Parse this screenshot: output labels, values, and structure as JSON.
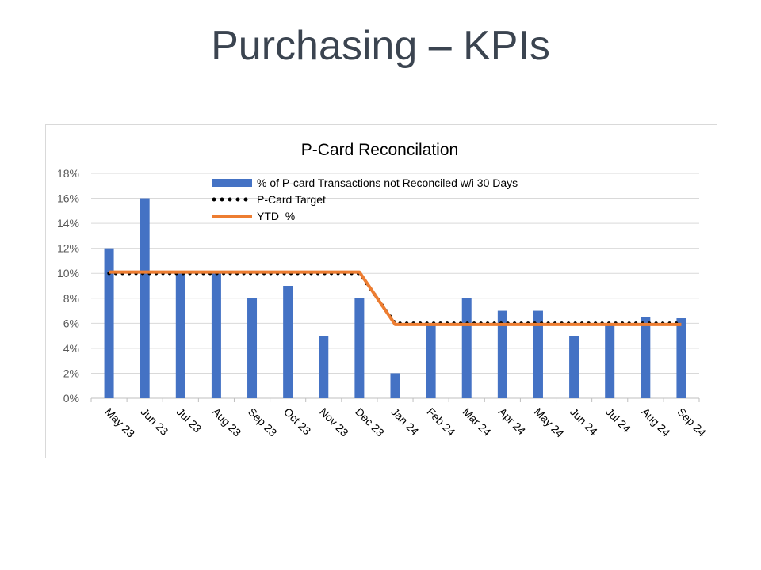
{
  "slide": {
    "title": "Purchasing – KPIs"
  },
  "chart_data": {
    "type": "bar",
    "title": "P-Card Reconcilation",
    "categories": [
      "May 23",
      "Jun 23",
      "Jul 23",
      "Aug 23",
      "Sep 23",
      "Oct 23",
      "Nov 23",
      "Dec 23",
      "Jan 24",
      "Feb 24",
      "Mar 24",
      "Apr 24",
      "May 24",
      "Jun 24",
      "Jul 24",
      "Aug 24",
      "Sep 24"
    ],
    "series": [
      {
        "name": "% of P-card Transactions not Reconciled w/i 30 Days",
        "kind": "bar",
        "color": "#4472c4",
        "values": [
          12,
          16,
          10,
          10,
          8,
          9,
          5,
          8,
          2,
          6,
          8,
          7,
          7,
          5,
          6,
          6.5,
          6.4
        ]
      },
      {
        "name": "P-Card Target",
        "kind": "dotted-line",
        "color": "#000000",
        "values": [
          10,
          10,
          10,
          10,
          10,
          10,
          10,
          10,
          6,
          6,
          6,
          6,
          6,
          6,
          6,
          6,
          6
        ]
      },
      {
        "name": "YTD  %",
        "kind": "line",
        "color": "#ed7d31",
        "values": [
          10.1,
          10.1,
          10.1,
          10.1,
          10.1,
          10.1,
          10.1,
          10.1,
          5.9,
          5.9,
          5.9,
          5.9,
          5.9,
          5.9,
          5.9,
          5.9,
          5.9
        ]
      }
    ],
    "yticks": [
      "0%",
      "2%",
      "4%",
      "6%",
      "8%",
      "10%",
      "12%",
      "14%",
      "16%",
      "18%"
    ],
    "ylim": [
      0,
      18
    ],
    "xlabel": "",
    "ylabel": "",
    "grid": true,
    "legend": "top-center"
  }
}
